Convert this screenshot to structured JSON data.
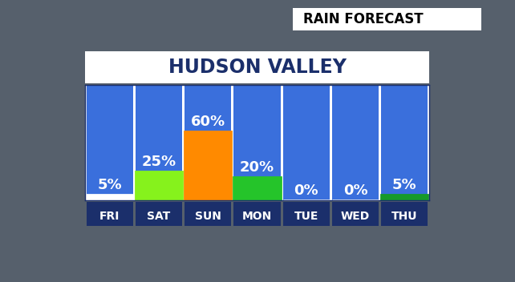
{
  "chart_data": {
    "type": "bar",
    "title": "HUDSON VALLEY",
    "subtitle": "RAIN FORECAST",
    "categories": [
      "FRI",
      "SAT",
      "SUN",
      "MON",
      "TUE",
      "WED",
      "THU"
    ],
    "values": [
      5,
      25,
      60,
      20,
      0,
      0,
      5
    ],
    "value_labels": [
      "5%",
      "25%",
      "60%",
      "20%",
      "0%",
      "0%",
      "5%"
    ],
    "colors": [
      "#ffffff",
      "#86f21c",
      "#ff8a00",
      "#25c42a",
      "#ffffff",
      "#ffffff",
      "#169a2a"
    ],
    "ylim": [
      0,
      100
    ],
    "data_labels": true,
    "tick_labels": "x",
    "grid": false
  }
}
